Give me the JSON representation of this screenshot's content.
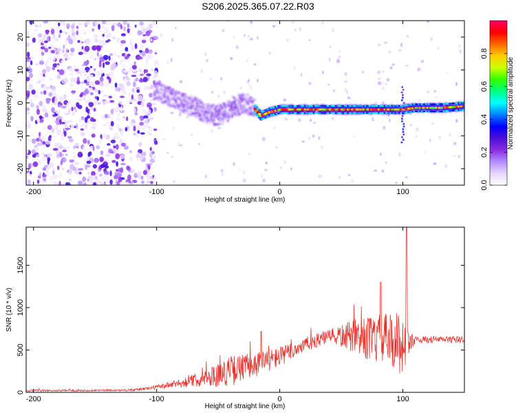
{
  "title": "S206.2025.365.07.22.R03",
  "colors": {
    "snr_line": "#e8312a",
    "background": "#ffffff",
    "colormap": [
      "#ffffff",
      "#e6d7ff",
      "#b28cff",
      "#8a2be2",
      "#4b0fd6",
      "#0000ff",
      "#0080ff",
      "#00ffff",
      "#00ff80",
      "#33ff00",
      "#ccff00",
      "#ffcc00",
      "#ff6600",
      "#ff0000",
      "#ff0066"
    ]
  },
  "chart_data": [
    {
      "type": "heatmap",
      "xlabel": "Height of straight line (km)",
      "ylabel": "Frequency (Hz)",
      "xlim": [
        -206,
        150
      ],
      "ylim": [
        -25,
        25
      ],
      "xticks": [
        -200,
        -100,
        0,
        100
      ],
      "yticks": [
        -20,
        -10,
        0,
        10,
        20
      ],
      "ridge": {
        "description_points_x": [
          -100,
          -90,
          -80,
          -70,
          -60,
          -50,
          -40,
          -30,
          -22,
          -15,
          -10,
          0,
          20,
          40,
          60,
          80,
          95,
          100,
          110,
          130,
          150
        ],
        "description_points_y": [
          4,
          2,
          0,
          -1,
          -3,
          -4,
          -2,
          0,
          -1,
          -4,
          -3,
          -2,
          -2,
          -2,
          -2,
          -2,
          -2,
          -2,
          -1.5,
          -1.5,
          -1
        ],
        "peak_amplitude_range_x": [
          -20,
          150
        ]
      },
      "noise_region_x": [
        -206,
        -100
      ],
      "colorbar": {
        "label": "Normalized spectral amplitude",
        "range": [
          0.0,
          1.0
        ],
        "ticks": [
          0.0,
          0.2,
          0.4,
          0.6,
          0.8
        ]
      }
    },
    {
      "type": "line",
      "xlabel": "Height of straight line (km)",
      "ylabel": "SNR (10 * v/v)",
      "xlim": [
        -206,
        150
      ],
      "ylim": [
        0,
        1950
      ],
      "xticks": [
        -200,
        -100,
        0,
        100
      ],
      "yticks": [
        0,
        500,
        1000,
        1500
      ],
      "envelope": {
        "x": [
          -206,
          -120,
          -100,
          -80,
          -60,
          -40,
          -20,
          0,
          20,
          40,
          60,
          80,
          95,
          100,
          105,
          110,
          130,
          150
        ],
        "base": [
          20,
          25,
          60,
          110,
          170,
          250,
          330,
          420,
          560,
          660,
          660,
          620,
          600,
          580,
          600,
          620,
          625,
          620
        ],
        "spread": [
          10,
          10,
          25,
          50,
          100,
          180,
          150,
          120,
          90,
          80,
          200,
          300,
          350,
          400,
          150,
          40,
          40,
          40
        ]
      },
      "peaks": [
        {
          "x": -15,
          "y": 720
        },
        {
          "x": 82,
          "y": 1300
        },
        {
          "x": 103,
          "y": 1950
        }
      ]
    }
  ]
}
